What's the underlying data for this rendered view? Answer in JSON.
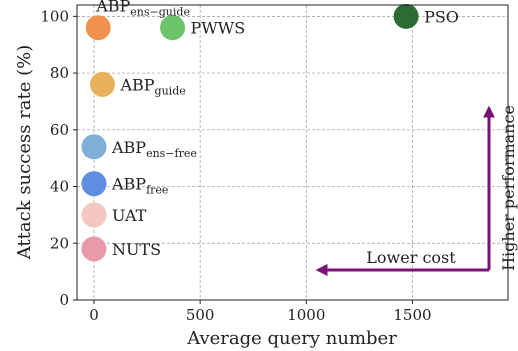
{
  "chart_data": {
    "type": "scatter",
    "xlabel": "Average query number",
    "ylabel": "Attack success rate (%)",
    "xlim": [
      -80,
      1950
    ],
    "ylim": [
      0,
      104
    ],
    "xticks": [
      0,
      500,
      1000,
      1500
    ],
    "yticks": [
      0,
      20,
      40,
      60,
      80,
      100
    ],
    "grid": true,
    "points": [
      {
        "base": "ABP",
        "sub": "ens−guide",
        "x": 20,
        "y": 96,
        "color": "#f0914e",
        "label_pos": "above"
      },
      {
        "base": "PWWS",
        "sub": "",
        "x": 370,
        "y": 96,
        "color": "#6cc46a",
        "label_pos": "right"
      },
      {
        "base": "PSO",
        "sub": "",
        "x": 1470,
        "y": 100,
        "color": "#2c6b33",
        "label_pos": "right"
      },
      {
        "base": "ABP",
        "sub": "guide",
        "x": 40,
        "y": 76,
        "color": "#e9b05c",
        "label_pos": "right"
      },
      {
        "base": "ABP",
        "sub": "ens−free",
        "x": 0,
        "y": 54,
        "color": "#7faed6",
        "label_pos": "right"
      },
      {
        "base": "ABP",
        "sub": "free",
        "x": 0,
        "y": 41,
        "color": "#5f8ee0",
        "label_pos": "right"
      },
      {
        "base": "UAT",
        "sub": "",
        "x": 0,
        "y": 30,
        "color": "#f3c7c2",
        "label_pos": "right"
      },
      {
        "base": "NUTS",
        "sub": "",
        "x": 0,
        "y": 18,
        "color": "#e99aa9",
        "label_pos": "right"
      }
    ],
    "annotations": {
      "lower_cost": "Lower cost",
      "higher_performance": "Higher performance",
      "arrow_color": "#7a1177"
    }
  }
}
